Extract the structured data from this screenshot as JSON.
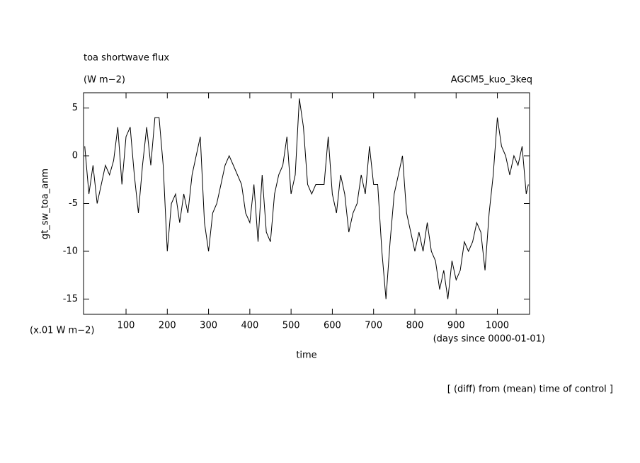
{
  "chart_data": {
    "type": "line",
    "title": "toa shortwave flux",
    "subtitle": "(W m−2)",
    "annotation_right": "AGCM5_kuo_3keq",
    "y_label": "gt_sw_toa_anm",
    "y_units": "(x.01 W m−2)",
    "x_label": "time",
    "x_units": "(days since 0000-01-01)",
    "note": "[ (diff) from (mean) time of control ]",
    "x": [
      0,
      10,
      20,
      30,
      40,
      50,
      60,
      70,
      80,
      90,
      100,
      110,
      120,
      130,
      140,
      150,
      160,
      170,
      180,
      190,
      200,
      210,
      220,
      230,
      240,
      250,
      260,
      270,
      280,
      290,
      300,
      310,
      320,
      330,
      340,
      350,
      360,
      370,
      380,
      390,
      400,
      410,
      420,
      430,
      440,
      450,
      460,
      470,
      480,
      490,
      500,
      510,
      520,
      530,
      540,
      550,
      560,
      570,
      580,
      590,
      600,
      610,
      620,
      630,
      640,
      650,
      660,
      670,
      680,
      690,
      700,
      710,
      720,
      730,
      740,
      750,
      760,
      770,
      780,
      790,
      800,
      810,
      820,
      830,
      840,
      850,
      860,
      870,
      880,
      890,
      900,
      910,
      920,
      930,
      940,
      950,
      960,
      970,
      980,
      990,
      1000,
      1010,
      1020,
      1030,
      1040,
      1050,
      1060,
      1070,
      1075
    ],
    "series": [
      {
        "color": "#000000",
        "values": [
          1,
          -4,
          -1,
          -5,
          -3,
          -1,
          -2,
          -0.5,
          3,
          -3,
          2,
          3,
          -2,
          -6,
          -1,
          3,
          -1,
          4,
          4,
          -1,
          -10,
          -5,
          -4,
          -7,
          -4,
          -6,
          -2,
          0,
          2,
          -7,
          -10,
          -6,
          -5,
          -3,
          -1,
          0,
          -1,
          -2,
          -3,
          -6,
          -7,
          -3,
          -9,
          -2,
          -8,
          -9,
          -4,
          -2,
          -1,
          2,
          -4,
          -2,
          6,
          3,
          -3,
          -4,
          -3,
          -3,
          -3,
          2,
          -4,
          -6,
          -2,
          -4,
          -8,
          -6,
          -5,
          -2,
          -4,
          1,
          -3,
          -3,
          -10,
          -15,
          -9,
          -4,
          -2,
          0,
          -6,
          -8,
          -10,
          -8,
          -10,
          -7,
          -10,
          -11,
          -14,
          -12,
          -15,
          -11,
          -13,
          -12,
          -9,
          -10,
          -9,
          -7,
          -8,
          -12,
          -6,
          -2,
          4,
          1,
          0,
          -2,
          0,
          -1,
          1,
          -4,
          -3
        ]
      }
    ],
    "xlim": [
      -3,
      1078
    ],
    "ylim": [
      -16.6,
      6.6
    ],
    "xticks": [
      100,
      200,
      300,
      400,
      500,
      600,
      700,
      800,
      900,
      1000
    ],
    "yticks": [
      -15,
      -10,
      -5,
      0,
      5
    ]
  }
}
